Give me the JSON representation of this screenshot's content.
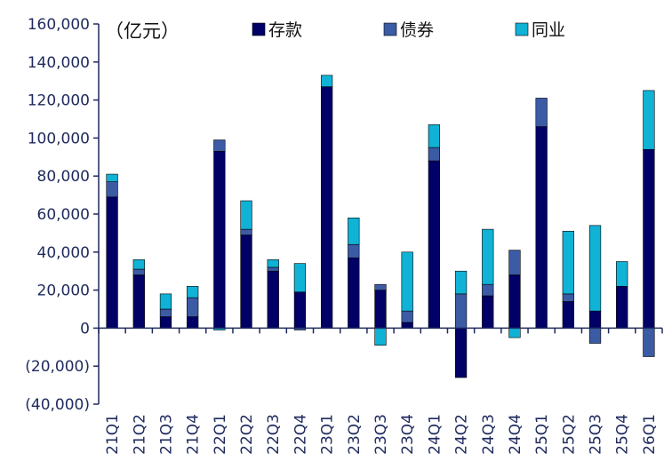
{
  "chart_data": {
    "type": "bar",
    "stacked": true,
    "unit_label": "（亿元）",
    "categories": [
      "21Q1",
      "21Q2",
      "21Q3",
      "21Q4",
      "22Q1",
      "22Q2",
      "22Q3",
      "22Q4",
      "23Q1",
      "23Q2",
      "23Q3",
      "23Q4",
      "24Q1",
      "24Q2",
      "24Q3",
      "24Q4",
      "25Q1",
      "25Q2",
      "25Q3",
      "25Q4",
      "26Q1"
    ],
    "y_tick_labels": [
      "160,000",
      "140,000",
      "120,000",
      "100,000",
      "80,000",
      "60,000",
      "40,000",
      "20,000",
      "0",
      "(20,000)",
      "(40,000)"
    ],
    "ylim": [
      -40000,
      160000
    ],
    "legend_position": "top",
    "grid": false,
    "series": [
      {
        "name": "存款",
        "color": "#000066",
        "values": [
          69000,
          28000,
          6000,
          6000,
          93000,
          49000,
          30000,
          19000,
          127000,
          37000,
          20000,
          3000,
          88000,
          -26000,
          17000,
          28000,
          106000,
          14000,
          9000,
          22000,
          94000
        ]
      },
      {
        "name": "债券",
        "color": "#3B5BA5",
        "values": [
          8000,
          3000,
          4000,
          10000,
          6000,
          3000,
          2000,
          -1000,
          0,
          7000,
          3000,
          6000,
          7000,
          18000,
          6000,
          13000,
          15000,
          4000,
          -8000,
          0,
          -15000
        ]
      },
      {
        "name": "同业",
        "color": "#10B2D6",
        "values": [
          4000,
          5000,
          8000,
          6000,
          -1000,
          15000,
          4000,
          15000,
          6000,
          14000,
          -9000,
          31000,
          12000,
          12000,
          29000,
          -5000,
          0,
          33000,
          45000,
          13000,
          31000
        ]
      }
    ]
  }
}
